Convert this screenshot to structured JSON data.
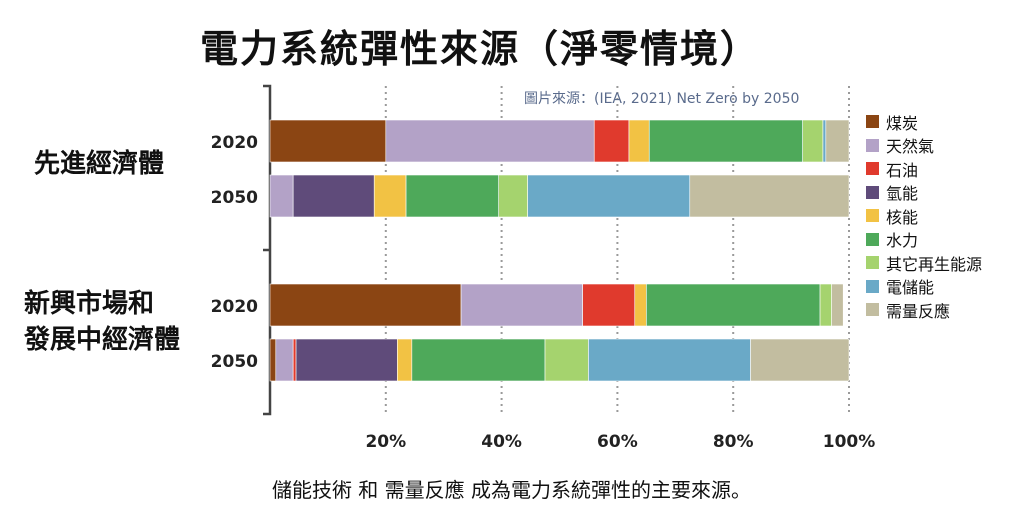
{
  "title": "電力系統彈性來源（淨零情境）",
  "source_note": "圖片來源：(IEA, 2021) Net Zero by 2050",
  "caption": "儲能技術 和 需量反應 成為電力系統彈性的主要來源。",
  "groups": [
    {
      "label_lines": [
        "先進經濟體"
      ]
    },
    {
      "label_lines": [
        "新興市場和",
        "發展中經濟體"
      ]
    }
  ],
  "chart_data": {
    "type": "bar",
    "orientation": "horizontal",
    "stacked": true,
    "title": "電力系統彈性來源（淨零情境）",
    "xlim": [
      0,
      100
    ],
    "x_ticks": [
      "20%",
      "40%",
      "60%",
      "80%",
      "100%"
    ],
    "x_tick_values": [
      20,
      40,
      60,
      80,
      100
    ],
    "grid": "vertical dotted",
    "legend_position": "right",
    "categories": [
      "2020",
      "2050",
      "2020",
      "2050"
    ],
    "category_groups": [
      "先進經濟體",
      "先進經濟體",
      "新興市場和發展中經濟體",
      "新興市場和發展中經濟體"
    ],
    "series": [
      {
        "name": "煤炭",
        "color": "#8B4513",
        "values": [
          20,
          0,
          33,
          1
        ]
      },
      {
        "name": "天然氣",
        "color": "#B3A2C7",
        "values": [
          36,
          4,
          21,
          3
        ]
      },
      {
        "name": "石油",
        "color": "#E03A2D",
        "values": [
          6,
          0,
          9,
          0.5
        ]
      },
      {
        "name": "氫能",
        "color": "#5F4B7A",
        "values": [
          0,
          14,
          0,
          17.5
        ]
      },
      {
        "name": "核能",
        "color": "#F2C244",
        "values": [
          3.5,
          5.5,
          2,
          2.5
        ]
      },
      {
        "name": "水力",
        "color": "#4EA95A",
        "values": [
          26.5,
          16,
          30,
          23
        ]
      },
      {
        "name": "其它再生能源",
        "color": "#A5D36E",
        "values": [
          3.5,
          5,
          2,
          7.5
        ]
      },
      {
        "name": "電儲能",
        "color": "#6AA9C7",
        "values": [
          0.5,
          28,
          0,
          28
        ]
      },
      {
        "name": "需量反應",
        "color": "#C2BDA0",
        "values": [
          4,
          27.5,
          2,
          17
        ]
      }
    ]
  }
}
